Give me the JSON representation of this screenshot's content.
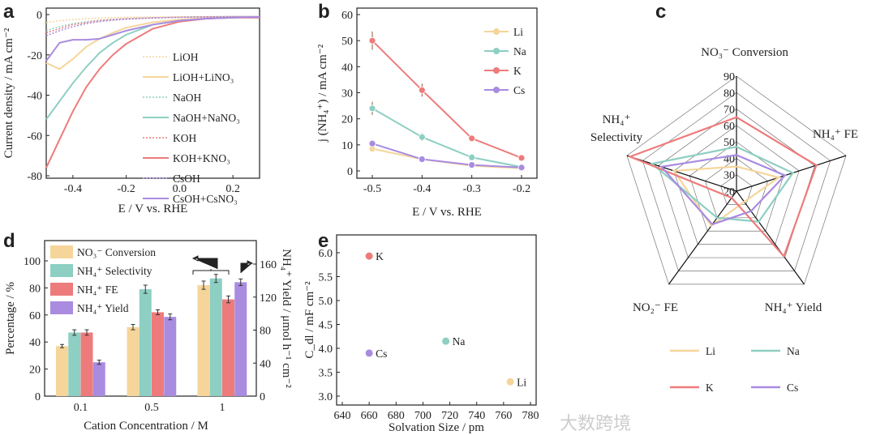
{
  "watermark": "大数跨境",
  "colors": {
    "Li": "#f6d59a",
    "Na": "#8dcfc2",
    "K": "#ee7b7b",
    "Cs": "#a98be0"
  },
  "chart_data": [
    {
      "panel": "a",
      "type": "line",
      "xlabel": "E / V vs. RHE",
      "ylabel": "Current density / mA cm⁻²",
      "xlim": [
        -0.5,
        0.3
      ],
      "ylim": [
        -82,
        0
      ],
      "xticks": [
        "-0.4",
        "-0.2",
        "0.0",
        "0.2"
      ],
      "xtick_values": [
        -0.4,
        -0.2,
        0,
        0.2
      ],
      "yticks": [
        "0",
        "-20",
        "-40",
        "-60",
        "-80"
      ],
      "ytick_values": [
        0,
        -20,
        -40,
        -60,
        -80
      ],
      "legend_position": "right",
      "x": [
        -0.5,
        -0.45,
        -0.4,
        -0.35,
        -0.3,
        -0.25,
        -0.2,
        -0.1,
        0,
        0.1,
        0.2,
        0.3
      ],
      "series": [
        {
          "name": "LiOH",
          "cation": "Li",
          "dashed": true,
          "values": [
            -4,
            -3,
            -2.5,
            -2,
            -1.7,
            -1.5,
            -1.3,
            -1.2,
            -1.1,
            -1,
            -1,
            -1
          ]
        },
        {
          "name": "LiOH+LiNO₃",
          "cation": "Li",
          "dashed": false,
          "values": [
            -24,
            -27,
            -22,
            -16,
            -12,
            -9,
            -6.5,
            -3.8,
            -2.5,
            -1.8,
            -1.3,
            -1.2
          ]
        },
        {
          "name": "NaOH",
          "cation": "Na",
          "dashed": true,
          "values": [
            -8,
            -6,
            -4.5,
            -3.5,
            -2.8,
            -2.3,
            -2,
            -1.6,
            -1.3,
            -1.1,
            -1,
            -1
          ]
        },
        {
          "name": "NaOH+NaNO₃",
          "cation": "Na",
          "dashed": false,
          "values": [
            -52,
            -43,
            -34,
            -26,
            -19,
            -14,
            -10,
            -5,
            -3,
            -2,
            -1.5,
            -1.2
          ]
        },
        {
          "name": "KOH",
          "cation": "K",
          "dashed": true,
          "values": [
            -9,
            -7,
            -5,
            -4,
            -3,
            -2.5,
            -2,
            -1.6,
            -1.3,
            -1.1,
            -1,
            -1
          ]
        },
        {
          "name": "KOH+KNO₃",
          "cation": "K",
          "dashed": false,
          "values": [
            -76,
            -62,
            -48,
            -36,
            -27,
            -20,
            -14.5,
            -7,
            -3.5,
            -2,
            -1.5,
            -1.5
          ]
        },
        {
          "name": "CsOH",
          "cation": "Cs",
          "dashed": true,
          "values": [
            -10.5,
            -8,
            -6,
            -4.5,
            -3.5,
            -2.8,
            -2.3,
            -1.7,
            -1.4,
            -1.2,
            -1,
            -1
          ]
        },
        {
          "name": "CsOH+CsNO₃",
          "cation": "Cs",
          "dashed": false,
          "values": [
            -23,
            -14,
            -12.5,
            -12.5,
            -12,
            -10,
            -8,
            -5,
            -3,
            -2,
            -1.5,
            -1.2
          ]
        }
      ]
    },
    {
      "panel": "b",
      "type": "line",
      "xlabel": "E / V vs. RHE",
      "ylabel": "j (NH₄⁺) / mA cm⁻²",
      "xlim": [
        -0.53,
        -0.17
      ],
      "ylim": [
        -2,
        60
      ],
      "xticks": [
        "-0.5",
        "-0.4",
        "-0.3",
        "-0.2"
      ],
      "xtick_values": [
        -0.5,
        -0.4,
        -0.3,
        -0.2
      ],
      "yticks": [
        "0",
        "10",
        "20",
        "30",
        "40",
        "50",
        "60"
      ],
      "ytick_values": [
        0,
        10,
        20,
        30,
        40,
        50,
        60
      ],
      "legend_position": "top-right",
      "x": [
        -0.5,
        -0.4,
        -0.3,
        -0.2
      ],
      "series": [
        {
          "name": "Li",
          "values": [
            8.5,
            4.5,
            2,
            1
          ],
          "err": [
            1,
            0.5,
            0.3,
            0.2
          ]
        },
        {
          "name": "Na",
          "values": [
            24,
            13,
            5.2,
            1.5
          ],
          "err": [
            2.5,
            1.5,
            0.6,
            0.3
          ]
        },
        {
          "name": "K",
          "values": [
            50,
            31,
            12.5,
            5
          ],
          "err": [
            3.5,
            2.5,
            0.8,
            0.5
          ]
        },
        {
          "name": "Cs",
          "values": [
            10.5,
            4.5,
            2.3,
            1.3
          ],
          "err": [
            1,
            0.5,
            0.3,
            0.2
          ]
        }
      ]
    },
    {
      "panel": "c",
      "type": "radar",
      "axes": [
        "NO₃⁻ Conversion",
        "NH₄⁺ FE",
        "NH₄⁺ Yield",
        "NO₂⁻ FE",
        "Selectivity"
      ],
      "axis_label_extra": "NH₄⁺",
      "range": [
        20,
        90
      ],
      "ticks": [
        "20",
        "30",
        "40",
        "50",
        "60",
        "70",
        "80",
        "90"
      ],
      "legend_position": "bottom",
      "series": [
        {
          "name": "Li",
          "values": [
            35,
            47,
            28,
            46,
            60
          ]
        },
        {
          "name": "Na",
          "values": [
            47,
            56,
            43,
            40,
            74
          ]
        },
        {
          "name": "K",
          "values": [
            65,
            71,
            69,
            25,
            88
          ]
        },
        {
          "name": "Cs",
          "values": [
            42,
            51,
            35,
            45,
            68
          ]
        }
      ]
    },
    {
      "panel": "d",
      "type": "bar",
      "xlabel": "Cation Concentration / M",
      "ylabel": "Percentage / %",
      "ylabel_right": "NH₄⁺ Yield / μmol h⁻¹ cm⁻²",
      "categories": [
        "0.1",
        "0.5",
        "1"
      ],
      "ylim": [
        0,
        115
      ],
      "ylim_right": [
        0,
        188
      ],
      "yticks": [
        "0",
        "20",
        "40",
        "60",
        "80",
        "100"
      ],
      "ytick_values": [
        0,
        20,
        40,
        60,
        80,
        100
      ],
      "yticks_right": [
        "0",
        "40",
        "80",
        "120",
        "160"
      ],
      "ytick_right_values": [
        0,
        40,
        80,
        120,
        160
      ],
      "legend_position": "top-left",
      "series": [
        {
          "name": "NO₃⁻ Conversion",
          "cation_color": "Li",
          "axis": "left",
          "values": [
            37,
            51,
            82
          ],
          "err": [
            1.2,
            2,
            3
          ]
        },
        {
          "name": "NH₄⁺ Selectivity",
          "cation_color": "Na",
          "axis": "left",
          "values": [
            47,
            79,
            87
          ],
          "err": [
            2,
            3,
            3
          ]
        },
        {
          "name": "NH₄⁺ FE",
          "cation_color": "K",
          "axis": "left",
          "values": [
            47,
            62,
            71.5
          ],
          "err": [
            2,
            1.8,
            2.5
          ]
        },
        {
          "name": "NH₄⁺ Yield",
          "cation_color": "Cs",
          "axis": "right",
          "values": [
            41,
            96,
            138
          ],
          "err": [
            2.5,
            3.5,
            4
          ]
        }
      ]
    },
    {
      "panel": "e",
      "type": "scatter",
      "xlabel": "Solvation Size / pm",
      "ylabel": "C_dl / mF cm⁻²",
      "xlim": [
        636,
        780
      ],
      "ylim": [
        3.0,
        6.2
      ],
      "xticks": [
        "640",
        "660",
        "680",
        "700",
        "720",
        "740",
        "760",
        "780"
      ],
      "xtick_values": [
        640,
        660,
        680,
        700,
        720,
        740,
        760,
        780
      ],
      "yticks": [
        "3.0",
        "3.5",
        "4.0",
        "4.5",
        "5.0",
        "5.5",
        "6.0"
      ],
      "ytick_values": [
        3.0,
        3.5,
        4.0,
        4.5,
        5.0,
        5.5,
        6.0
      ],
      "points": [
        {
          "name": "K",
          "x": 660,
          "y": 5.93
        },
        {
          "name": "Na",
          "x": 717,
          "y": 4.15
        },
        {
          "name": "Cs",
          "x": 660,
          "y": 3.9
        },
        {
          "name": "Li",
          "x": 765,
          "y": 3.3
        }
      ]
    }
  ]
}
